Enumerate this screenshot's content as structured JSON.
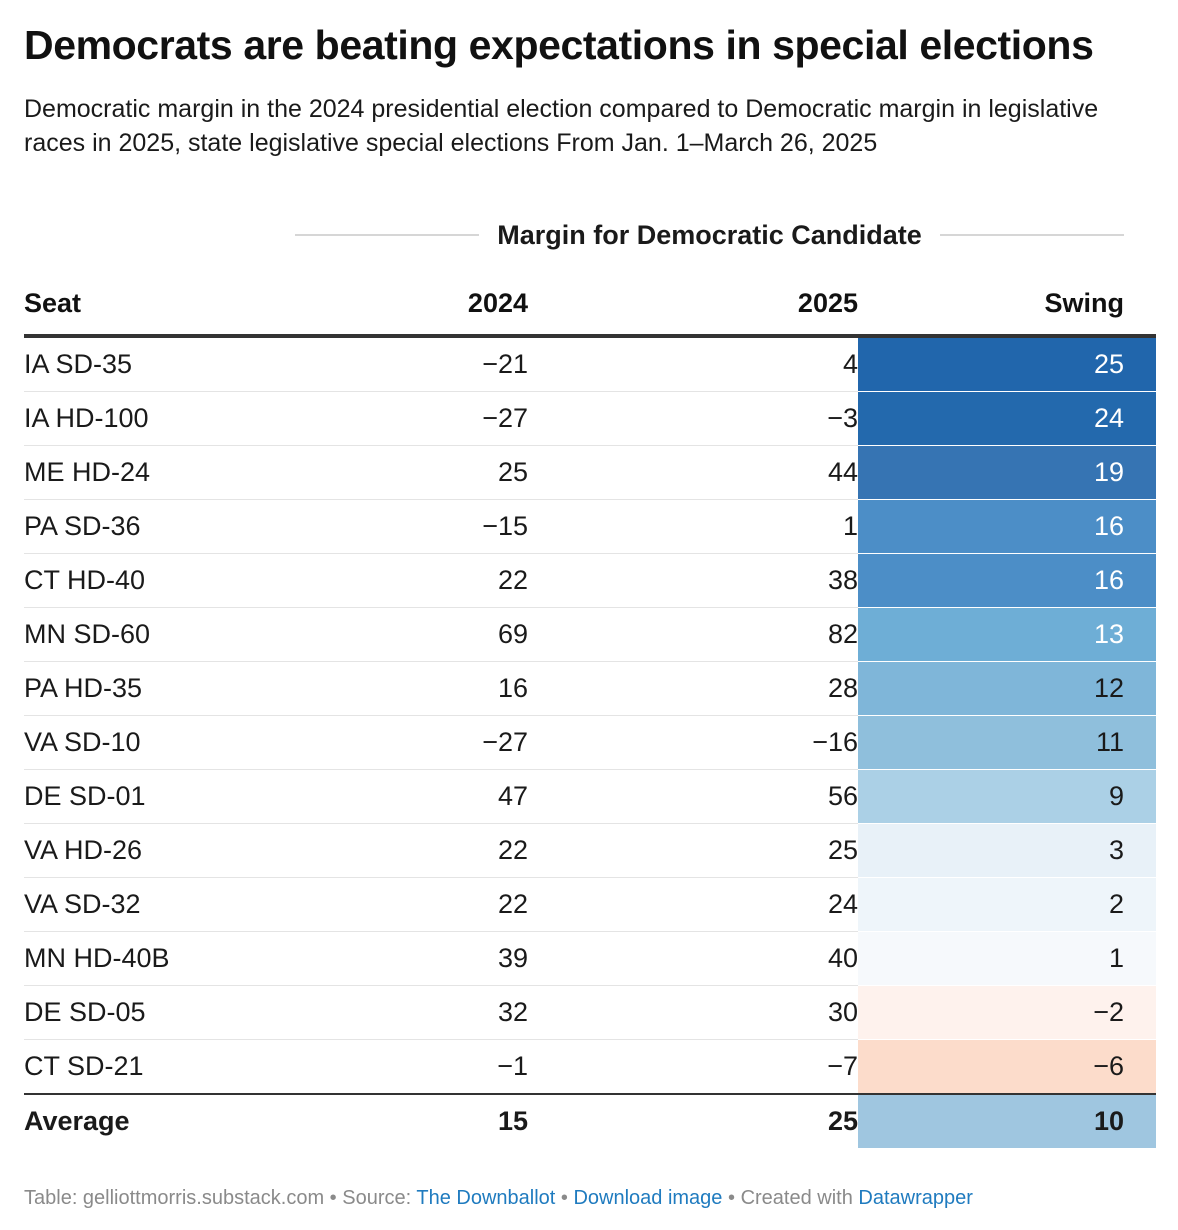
{
  "title": "Democrats are beating expectations in special elections",
  "subtitle": "Democratic margin in the 2024 presidential election compared to Democratic margin in legislative races in 2025, state legislative special elections From Jan. 1–March 26, 2025",
  "chart_data": {
    "type": "table",
    "group_header": "Margin for Democratic Candidate",
    "columns": [
      "Seat",
      "2024",
      "2025",
      "Swing"
    ],
    "rows": [
      {
        "seat": "IA SD-35",
        "y2024": "−21",
        "y2025": "4",
        "swing": "25",
        "bg": "#2166ac",
        "fg": "#ffffff"
      },
      {
        "seat": "IA HD-100",
        "y2024": "−27",
        "y2025": "−3",
        "swing": "24",
        "bg": "#2369ad",
        "fg": "#ffffff"
      },
      {
        "seat": "ME HD-24",
        "y2024": "25",
        "y2025": "44",
        "swing": "19",
        "bg": "#3674b3",
        "fg": "#ffffff"
      },
      {
        "seat": "PA SD-36",
        "y2024": "−15",
        "y2025": "1",
        "swing": "16",
        "bg": "#4c8ec7",
        "fg": "#ffffff"
      },
      {
        "seat": "CT HD-40",
        "y2024": "22",
        "y2025": "38",
        "swing": "16",
        "bg": "#4c8ec7",
        "fg": "#ffffff"
      },
      {
        "seat": "MN SD-60",
        "y2024": "69",
        "y2025": "82",
        "swing": "13",
        "bg": "#6eaed6",
        "fg": "#ffffff"
      },
      {
        "seat": "PA HD-35",
        "y2024": "16",
        "y2025": "28",
        "swing": "12",
        "bg": "#7fb6d9",
        "fg": "#1a1a1a"
      },
      {
        "seat": "VA SD-10",
        "y2024": "−27",
        "y2025": "−16",
        "swing": "11",
        "bg": "#8fbfdc",
        "fg": "#1a1a1a"
      },
      {
        "seat": "DE SD-01",
        "y2024": "47",
        "y2025": "56",
        "swing": "9",
        "bg": "#abd0e6",
        "fg": "#1a1a1a"
      },
      {
        "seat": "VA HD-26",
        "y2024": "22",
        "y2025": "25",
        "swing": "3",
        "bg": "#e8f1f8",
        "fg": "#1a1a1a"
      },
      {
        "seat": "VA SD-32",
        "y2024": "22",
        "y2025": "24",
        "swing": "2",
        "bg": "#eef5fa",
        "fg": "#1a1a1a"
      },
      {
        "seat": "MN HD-40B",
        "y2024": "39",
        "y2025": "40",
        "swing": "1",
        "bg": "#f6f9fc",
        "fg": "#1a1a1a"
      },
      {
        "seat": "DE SD-05",
        "y2024": "32",
        "y2025": "30",
        "swing": "−2",
        "bg": "#fef2ed",
        "fg": "#1a1a1a"
      },
      {
        "seat": "CT SD-21",
        "y2024": "−1",
        "y2025": "−7",
        "swing": "−6",
        "bg": "#fcdccb",
        "fg": "#1a1a1a"
      }
    ],
    "average": {
      "seat": "Average",
      "y2024": "15",
      "y2025": "25",
      "swing": "10",
      "bg": "#9fc6e0",
      "fg": "#1a1a1a"
    }
  },
  "footer": {
    "table_credit": "Table: gelliottmorris.substack.com",
    "sep": " • ",
    "source_label": "Source: ",
    "source_link": "The Downballot",
    "download_link": "Download image",
    "created_label": "Created with ",
    "tool_link": "Datawrapper",
    "link_color": "#1f7bbf"
  }
}
